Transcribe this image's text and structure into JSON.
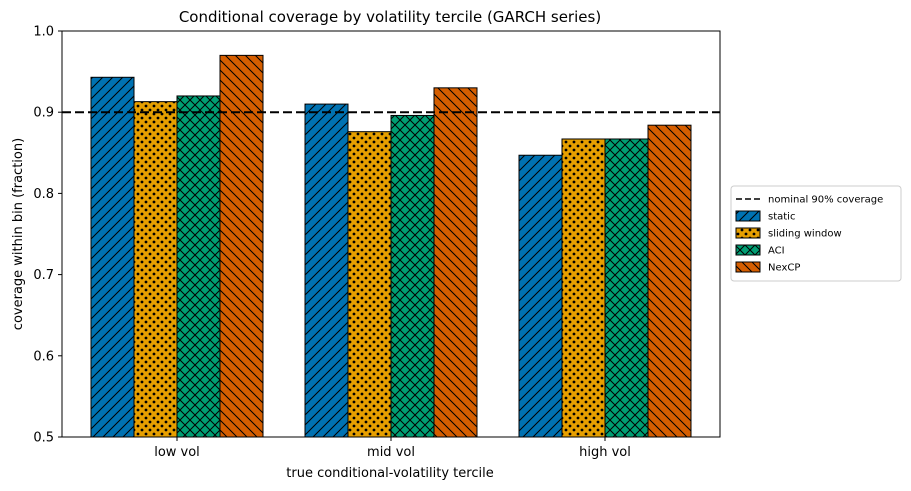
{
  "chart_data": {
    "type": "bar",
    "title": "Conditional coverage by volatility tercile (GARCH series)",
    "xlabel": "true conditional-volatility tercile",
    "ylabel": "coverage within bin (fraction)",
    "categories": [
      "low vol",
      "mid vol",
      "high vol"
    ],
    "ylim": [
      0.5,
      1.0
    ],
    "yticks": [
      "0.5",
      "0.6",
      "0.7",
      "0.8",
      "0.9",
      "1.0"
    ],
    "grid": false,
    "legend_position": "right",
    "reference_line": {
      "label": "nominal 90% coverage",
      "value": 0.9,
      "color": "#000000",
      "style": "dashed"
    },
    "series": [
      {
        "name": "static",
        "values": [
          0.943,
          0.91,
          0.847
        ],
        "color": "#0072B2",
        "hatch": "diagonal-forward"
      },
      {
        "name": "sliding window",
        "values": [
          0.913,
          0.876,
          0.867
        ],
        "color": "#E69F00",
        "hatch": "dots"
      },
      {
        "name": "ACI",
        "values": [
          0.92,
          0.896,
          0.867
        ],
        "color": "#009E73",
        "hatch": "crosshatch"
      },
      {
        "name": "NexCP",
        "values": [
          0.97,
          0.93,
          0.884
        ],
        "color": "#D55E00",
        "hatch": "diagonal-back"
      }
    ]
  }
}
